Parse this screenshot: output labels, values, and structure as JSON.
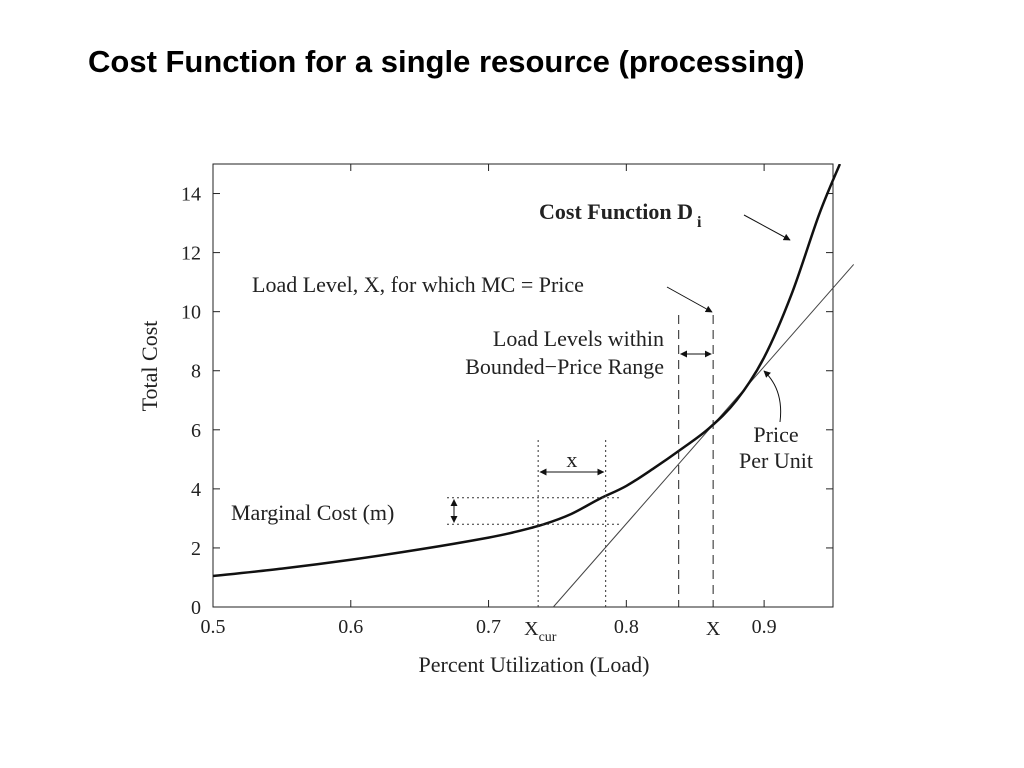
{
  "slide": {
    "title": "Cost Function for a single resource (processing)"
  },
  "chart_data": {
    "type": "line",
    "title": "",
    "xlabel": "Percent Utilization (Load)",
    "ylabel": "Total Cost",
    "xlim": [
      0.5,
      0.95
    ],
    "ylim": [
      0,
      15
    ],
    "x_ticks": [
      {
        "value": 0.5,
        "label": "0.5"
      },
      {
        "value": 0.6,
        "label": "0.6"
      },
      {
        "value": 0.7,
        "label": "0.7"
      },
      {
        "value": 0.8,
        "label": "0.8"
      },
      {
        "value": 0.9,
        "label": "0.9"
      }
    ],
    "y_ticks": [
      {
        "value": 0,
        "label": "0"
      },
      {
        "value": 2,
        "label": "2"
      },
      {
        "value": 4,
        "label": "4"
      },
      {
        "value": 6,
        "label": "6"
      },
      {
        "value": 8,
        "label": "8"
      },
      {
        "value": 10,
        "label": "10"
      },
      {
        "value": 12,
        "label": "12"
      },
      {
        "value": 14,
        "label": "14"
      }
    ],
    "grid": false,
    "series": [
      {
        "name": "Cost Function D",
        "name_subscript": "i",
        "color": "#111111",
        "x": [
          0.5,
          0.55,
          0.6,
          0.65,
          0.7,
          0.72,
          0.74,
          0.76,
          0.78,
          0.8,
          0.82,
          0.84,
          0.86,
          0.88,
          0.9,
          0.92,
          0.94,
          0.955
        ],
        "y": [
          1.05,
          1.3,
          1.6,
          1.95,
          2.35,
          2.55,
          2.8,
          3.15,
          3.65,
          4.1,
          4.7,
          5.35,
          6.05,
          7.0,
          8.45,
          10.6,
          13.3,
          15.0
        ]
      },
      {
        "name": "Price Per Unit",
        "color": "#444444",
        "x": [
          0.747,
          0.965
        ],
        "y": [
          0.0,
          11.6
        ]
      }
    ],
    "annotations": {
      "x_cur": {
        "value": 0.736,
        "label": "X",
        "subscript": "cur"
      },
      "x_next": {
        "value": 0.785
      },
      "x_small_label": "x",
      "bound_left": {
        "value": 0.838
      },
      "x_upper": {
        "value": 0.863,
        "label": "X"
      },
      "marginal_cost": {
        "label": "Marginal Cost (m)",
        "y_low": 2.8,
        "y_high": 3.7
      },
      "load_level_label": "Load Level, X, for which MC = Price",
      "bounded_range_label_1": "Load Levels within",
      "bounded_range_label_2": "Bounded−Price Range",
      "price_label_1": "Price",
      "price_label_2": "Per Unit"
    }
  }
}
